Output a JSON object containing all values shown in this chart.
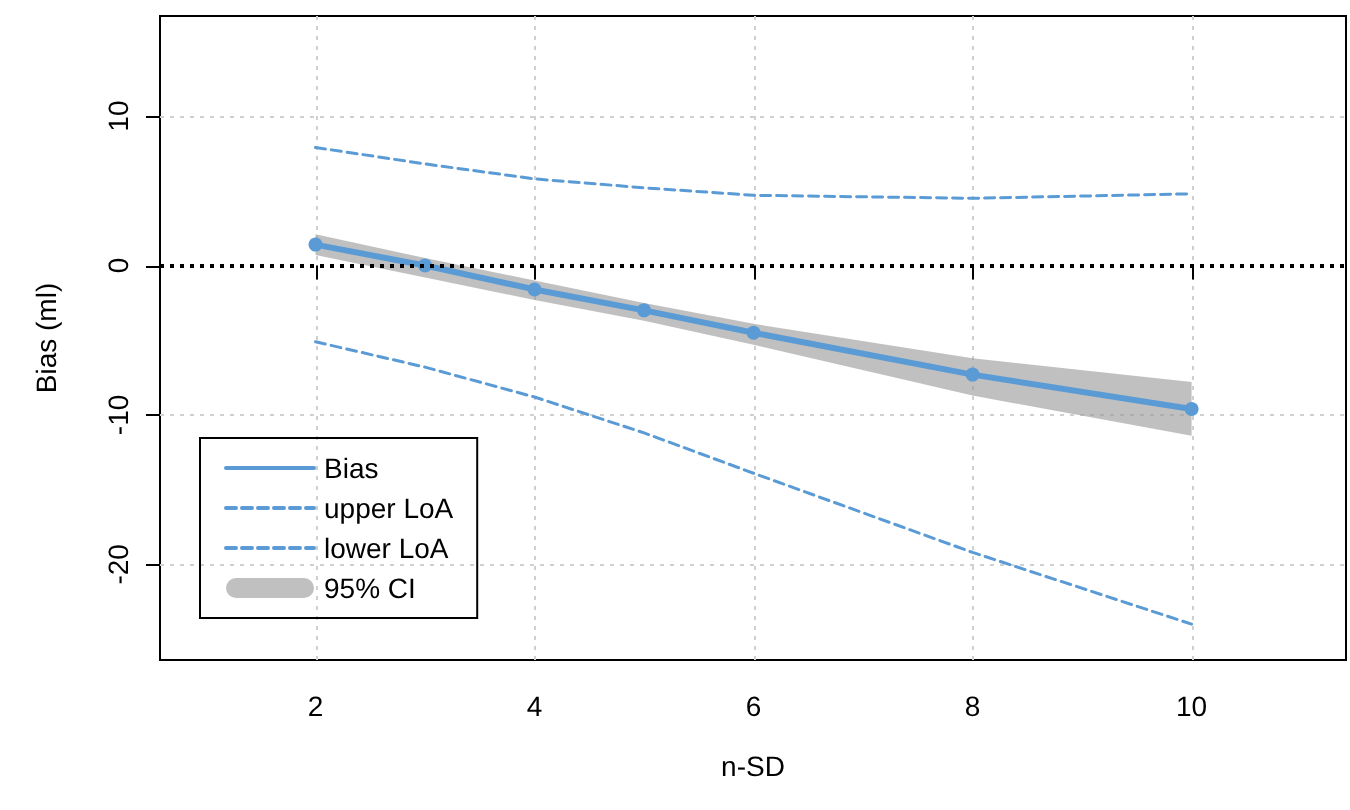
{
  "chart_data": {
    "type": "line",
    "xlabel": "n-SD",
    "ylabel": "Bias (ml)",
    "x": [
      2,
      3,
      4,
      5,
      6,
      8,
      10
    ],
    "xlim": [
      0.58,
      11.41
    ],
    "ylim": [
      -26.4,
      16.7
    ],
    "xticks": [
      2,
      4,
      6,
      8,
      10
    ],
    "yticks": [
      -20,
      -10,
      0,
      10
    ],
    "grid": true,
    "legend": "bottom left",
    "ref_lines": [
      {
        "axis": "y",
        "value": 0,
        "color": "#000000",
        "line_style": "dotted"
      }
    ],
    "series": [
      {
        "name": "Bias",
        "color": "#5b9bd5",
        "marker": "circle",
        "line_style": "solid",
        "values": [
          1.4,
          0,
          -1.6,
          -3.0,
          -4.5,
          -7.3,
          -9.6
        ],
        "lower": [
          0.7,
          -0.8,
          -2.3,
          -3.7,
          -5.3,
          -8.7,
          -11.4
        ],
        "upper": [
          2.1,
          0.5,
          -1.0,
          -2.5,
          -3.9,
          -6.2,
          -7.8
        ]
      },
      {
        "name": "upper LoA",
        "color": "#5b9bd5",
        "marker": "none",
        "line_style": "dashed",
        "values": [
          7.9,
          6.8,
          5.8,
          5.2,
          4.7,
          4.5,
          4.8
        ]
      },
      {
        "name": "lower LoA",
        "color": "#5b9bd5",
        "marker": "none",
        "line_style": "dashed",
        "values": [
          -5.1,
          -6.8,
          -8.8,
          -11.2,
          -13.9,
          -19.2,
          -24.0
        ]
      }
    ],
    "annotations": [
      "95% CI"
    ]
  }
}
